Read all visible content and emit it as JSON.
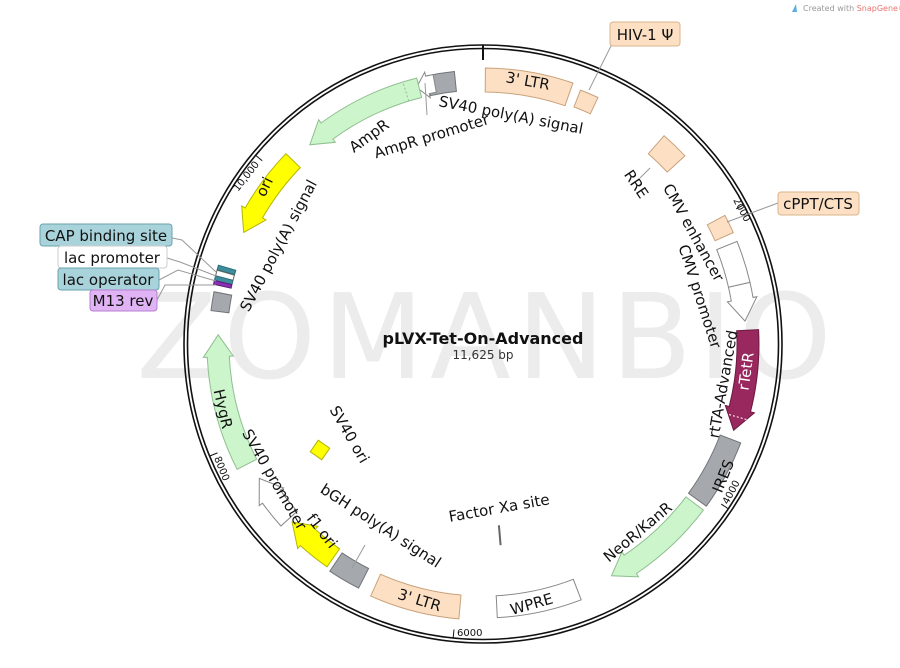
{
  "credit": {
    "prefix": "Created with ",
    "brand": "SnapGene®"
  },
  "watermark": "ZOMANBIO",
  "map": {
    "name": "pLVX-Tet-On-Advanced",
    "length": "11,625 bp"
  },
  "ticks": [
    "2000",
    "4000",
    "6000",
    "8000",
    "10,000"
  ],
  "colors": {
    "ltr": "#fde0c4",
    "marker": "#ccf5cc",
    "ori": "#ffff00",
    "polyA": "#a5a9ae",
    "promoter": "#ffffff",
    "rtetr": "#99285e",
    "lac_teal": "#3d8d9c",
    "m13": "#8a2fb0",
    "cap_box": "#a9d3db",
    "m13_box": "#e0b4f4"
  },
  "features": {
    "ltr3_top": "3' LTR",
    "sv40_polya_top": "SV40 poly(A) signal",
    "ampr": "AmpR",
    "ampr_promoter": "AmpR promoter",
    "ori": "ori",
    "sv40_polya_left": "SV40 poly(A) signal",
    "rre": "RRE",
    "cmv_enhancer": "CMV enhancer",
    "cmv_promoter": "CMV promoter",
    "rtta": "rtTA-Advanced",
    "rtetr": "rTetR",
    "ires": "IRES",
    "neor": "NeoR/KanR",
    "wpre": "WPRE",
    "ltr3_bottom": "3' LTR",
    "factor_xa": "Factor Xa site",
    "bgh_polya": "bGH poly(A) signal",
    "f1_ori": "f1 ori",
    "sv40_promoter": "SV40 promoter",
    "hygr": "HygR",
    "sv40_ori": "SV40 ori"
  },
  "callouts": {
    "hiv_psi": "HIV-1 Ψ",
    "cppt": "cPPT/CTS",
    "cap": "CAP binding site",
    "lac_promoter": "lac promoter",
    "lac_operator": "lac operator",
    "m13_rev": "M13 rev"
  }
}
